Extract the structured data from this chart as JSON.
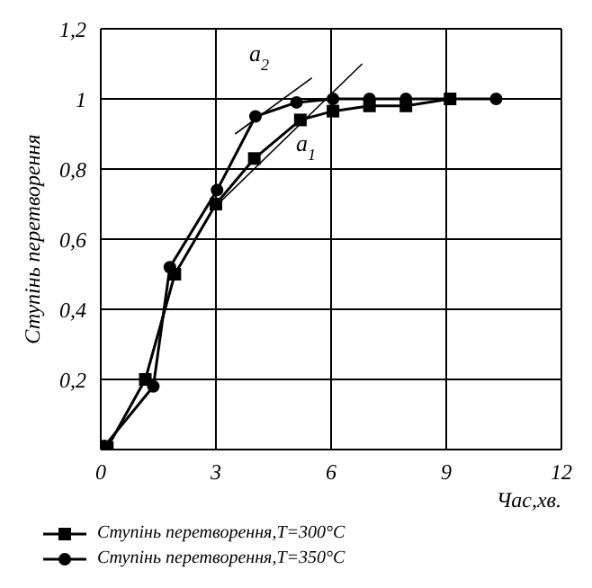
{
  "chart_data": {
    "type": "line",
    "xlabel": "Час,хв.",
    "ylabel": "Ступінь перетворення",
    "xlim": [
      0,
      12
    ],
    "xticks": [
      0,
      3,
      6,
      9,
      12
    ],
    "ylim": [
      0,
      1.2
    ],
    "yticks": [
      {
        "value": 0,
        "label": null
      },
      {
        "value": 0.2,
        "label": "0,2"
      },
      {
        "value": 0.4,
        "label": "0,4"
      },
      {
        "value": 0.6,
        "label": "0,6"
      },
      {
        "value": 0.8,
        "label": "0,8"
      },
      {
        "value": 1,
        "label": "1"
      },
      {
        "value": 1.2,
        "label": "1,2"
      }
    ],
    "grid": true,
    "legend": "bottom",
    "series": [
      {
        "name": "Ступінь перетворення,Т=300°С",
        "color": "#000000",
        "marker": "square",
        "x": [
          0.17,
          1.16,
          1.93,
          3.0,
          4.0,
          5.2,
          6.05,
          7.0,
          7.95,
          9.1
        ],
        "values": [
          0.005,
          0.2,
          0.5,
          0.7,
          0.83,
          0.94,
          0.965,
          0.98,
          0.98,
          1.0
        ]
      },
      {
        "name": "Ступінь перетворення,Т=350°С",
        "color": "#000000",
        "marker": "circle",
        "x": [
          0.1,
          1.37,
          1.8,
          3.03,
          4.03,
          5.1,
          6.05,
          7.0,
          7.95,
          9.1,
          10.3
        ],
        "values": [
          0.01,
          0.18,
          0.52,
          0.74,
          0.95,
          0.99,
          1.0,
          1.0,
          1.0,
          1.0,
          1.0
        ]
      },
      {
        "color": "#000000",
        "marker": "none",
        "x": [
          2.96,
          6.81
        ],
        "values": [
          0.69,
          1.1
        ]
      },
      {
        "color": "#000000",
        "marker": "none",
        "x": [
          3.5,
          5.5
        ],
        "values": [
          0.9,
          1.06
        ]
      }
    ],
    "annotations": [
      "a$_{2}$",
      "a$_{1}$"
    ]
  }
}
